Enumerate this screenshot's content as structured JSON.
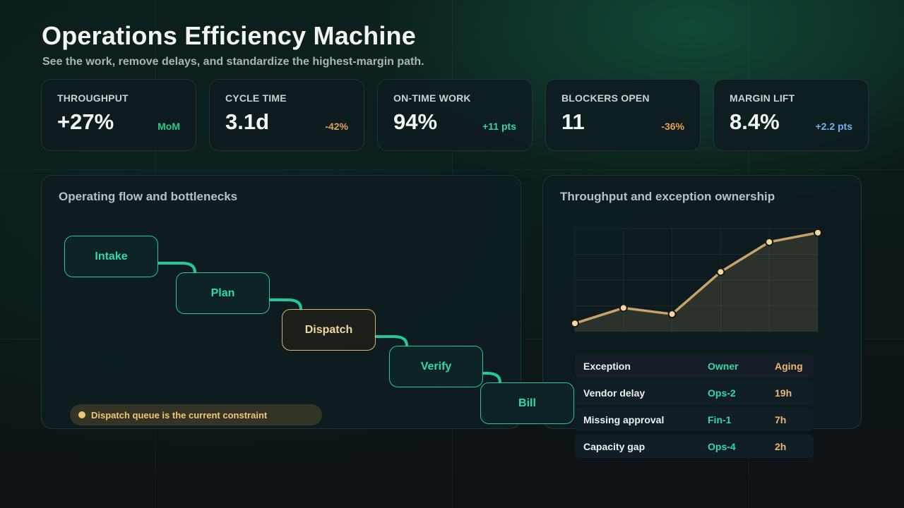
{
  "header": {
    "title": "Operations Efficiency Machine",
    "subtitle": "See the work, remove delays, and standardize the highest-margin path."
  },
  "kpis": [
    {
      "label": "THROUGHPUT",
      "value": "+27%",
      "delta": "MoM",
      "delta_color": "#27c98f"
    },
    {
      "label": "CYCLE TIME",
      "value": "3.1d",
      "delta": "-42%",
      "delta_color": "#d9a25b"
    },
    {
      "label": "ON-TIME WORK",
      "value": "94%",
      "delta": "+11 pts",
      "delta_color": "#37d3a6"
    },
    {
      "label": "BLOCKERS OPEN",
      "value": "11",
      "delta": "-36%",
      "delta_color": "#e8a24c"
    },
    {
      "label": "MARGIN LIFT",
      "value": "8.4%",
      "delta": "+2.2 pts",
      "delta_color": "#6fb3f5"
    }
  ],
  "flow": {
    "title": "Operating flow and bottlenecks",
    "steps": [
      {
        "label": "Intake",
        "state": "normal"
      },
      {
        "label": "Plan",
        "state": "normal"
      },
      {
        "label": "Dispatch",
        "state": "bottleneck"
      },
      {
        "label": "Verify",
        "state": "normal"
      },
      {
        "label": "Bill",
        "state": "normal"
      }
    ],
    "constraint_note": "Dispatch queue is the current constraint",
    "colors": {
      "normal": "#1fc99a",
      "bottleneck": "#d9b36e"
    }
  },
  "throughput": {
    "title": "Throughput and exception ownership",
    "chart_data": {
      "type": "area",
      "x": [
        1,
        2,
        3,
        4,
        5,
        6
      ],
      "values": [
        8,
        23,
        17,
        58,
        87,
        96
      ],
      "ylim": [
        0,
        100
      ],
      "grid": true,
      "line_color": "#c9a46a"
    },
    "exceptions": {
      "headers": [
        "Exception",
        "Owner",
        "Aging"
      ],
      "rows": [
        [
          "Vendor delay",
          "Ops-2",
          "19h"
        ],
        [
          "Missing approval",
          "Fin-1",
          "7h"
        ],
        [
          "Capacity gap",
          "Ops-4",
          "2h"
        ]
      ]
    }
  }
}
